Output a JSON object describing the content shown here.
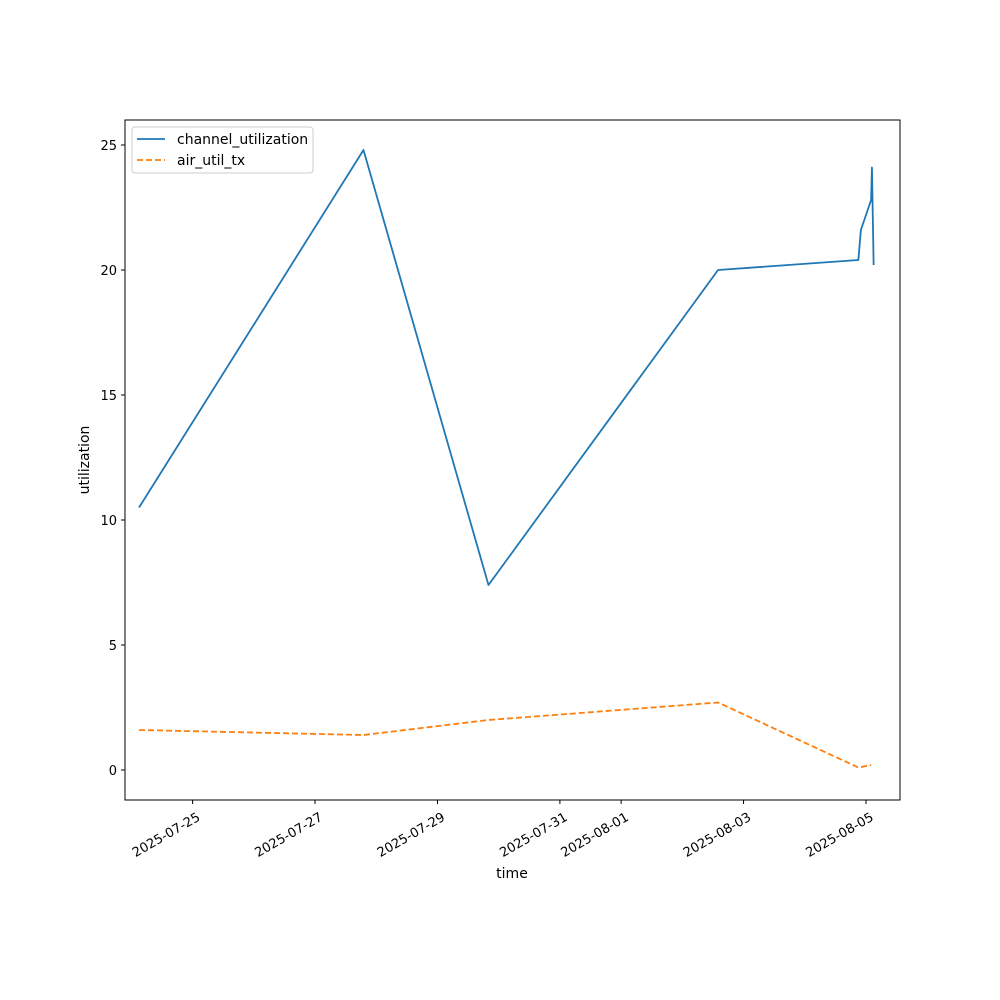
{
  "chart_data": {
    "type": "line",
    "title": "",
    "xlabel": "time",
    "ylabel": "utilization",
    "xlim": [
      "2025-07-23T21:30",
      "2025-08-05T13:20"
    ],
    "ylim": [
      -1.2,
      26.0
    ],
    "grid": false,
    "legend_position": "top-left",
    "x_ticks": [
      "2025-07-25",
      "2025-07-27",
      "2025-07-29",
      "2025-07-31",
      "2025-08-01",
      "2025-08-03",
      "2025-08-05"
    ],
    "y_ticks": [
      0,
      5,
      10,
      15,
      20,
      25
    ],
    "series": [
      {
        "name": "channel_utilization",
        "color": "#1f77b4",
        "style": "solid",
        "points": [
          {
            "x": "2025-07-24T03:00",
            "y": 10.5
          },
          {
            "x": "2025-07-27T19:00",
            "y": 24.8
          },
          {
            "x": "2025-07-29T20:00",
            "y": 7.4
          },
          {
            "x": "2025-08-02T14:00",
            "y": 20.0
          },
          {
            "x": "2025-08-04T21:00",
            "y": 20.4
          },
          {
            "x": "2025-08-04T22:00",
            "y": 21.6
          },
          {
            "x": "2025-08-05T02:00",
            "y": 22.8
          },
          {
            "x": "2025-08-05T02:20",
            "y": 24.1
          },
          {
            "x": "2025-08-05T03:00",
            "y": 20.2
          }
        ]
      },
      {
        "name": "air_util_tx",
        "color": "#ff7f0e",
        "style": "dashed",
        "points": [
          {
            "x": "2025-07-24T03:00",
            "y": 1.6
          },
          {
            "x": "2025-07-27T19:00",
            "y": 1.4
          },
          {
            "x": "2025-07-29T20:00",
            "y": 2.0
          },
          {
            "x": "2025-08-02T14:00",
            "y": 2.7
          },
          {
            "x": "2025-08-04T21:00",
            "y": 0.1
          },
          {
            "x": "2025-08-05T02:00",
            "y": 0.2
          }
        ]
      }
    ]
  }
}
